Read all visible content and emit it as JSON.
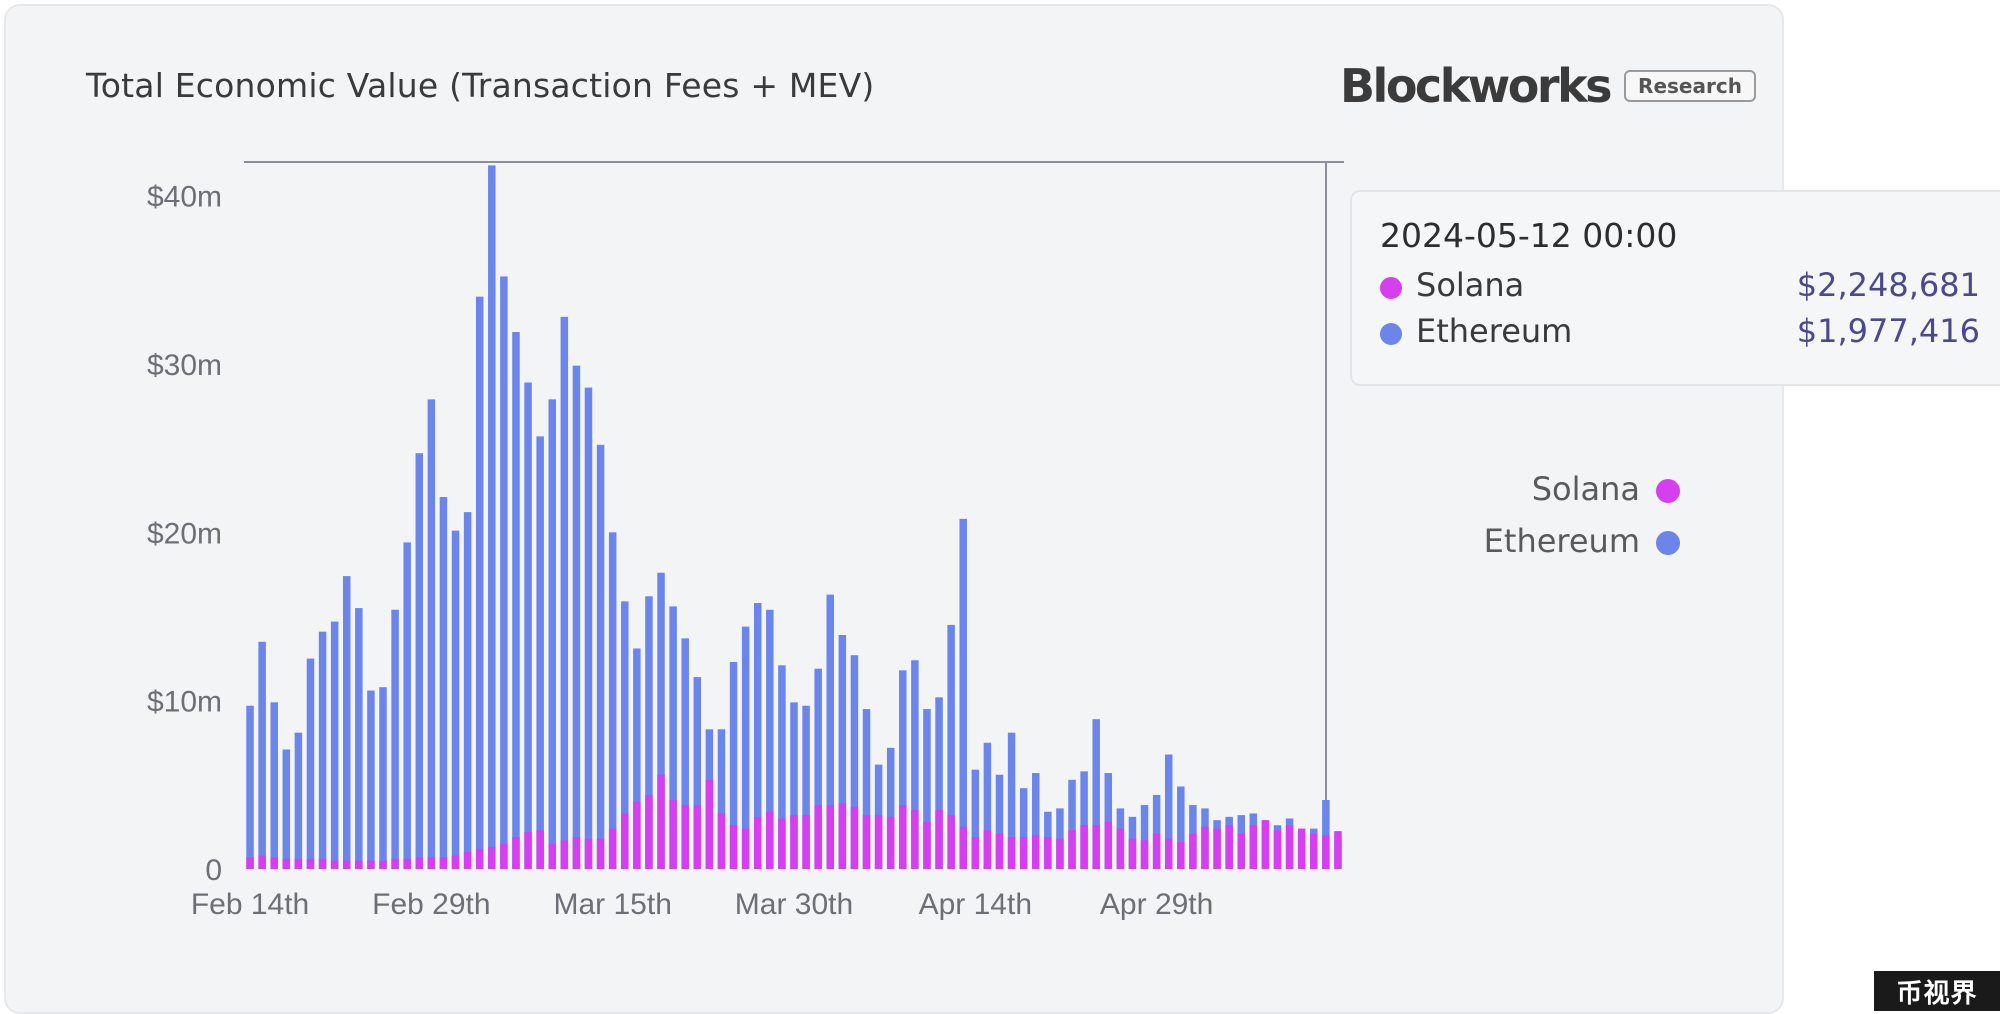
{
  "header": {
    "title": "Total Economic Value (Transaction Fees + MEV)",
    "brand": "Blockworks",
    "brand_badge": "Research"
  },
  "tooltip": {
    "date": "2024-05-12 00:00",
    "rows": [
      {
        "name": "Solana",
        "value": "$2,248,681",
        "color": "#d63ff0"
      },
      {
        "name": "Ethereum",
        "value": "$1,977,416",
        "color": "#6b85ea"
      }
    ]
  },
  "legend": [
    {
      "name": "Solana",
      "color": "#d63ff0"
    },
    {
      "name": "Ethereum",
      "color": "#6b85ea"
    }
  ],
  "watermark": "币视界",
  "chart_data": {
    "type": "bar",
    "y_ticks": [
      "0",
      "$10m",
      "$20m",
      "$30m",
      "$40m"
    ],
    "x_ticks": [
      "Feb 14th",
      "Feb 29th",
      "Mar 15th",
      "Mar 30th",
      "Apr 14th",
      "Apr 29th"
    ],
    "x_tick_indices": [
      0,
      15,
      30,
      45,
      60,
      75
    ],
    "ylim": [
      0,
      42
    ],
    "unit": "$m",
    "start_label": "Feb 14th",
    "colors": {
      "Solana": "#d63ff0",
      "Ethereum": "#6b85ea"
    },
    "series": [
      {
        "name": "Ethereum",
        "values": [
          9.7,
          13.5,
          9.9,
          7.1,
          8.1,
          12.5,
          14.1,
          14.7,
          17.4,
          15.5,
          10.6,
          10.8,
          15.4,
          19.4,
          24.7,
          27.9,
          22.1,
          20.1,
          21.2,
          34,
          41.8,
          35.2,
          31.9,
          28.9,
          25.7,
          27.9,
          32.8,
          29.9,
          28.6,
          25.2,
          20,
          15.9,
          13.1,
          16.2,
          17.6,
          15.6,
          13.7,
          11.4,
          8.3,
          8.3,
          12.3,
          14.4,
          15.8,
          15.4,
          12.1,
          9.9,
          9.7,
          11.9,
          16.3,
          13.9,
          12.7,
          9.5,
          6.2,
          7.2,
          11.8,
          12.4,
          9.5,
          10.2,
          14.5,
          20.8,
          5.9,
          7.5,
          5.6,
          8.1,
          4.8,
          5.7,
          3.4,
          3.6,
          5.3,
          5.8,
          8.9,
          5.7,
          3.6,
          3.1,
          3.8,
          4.4,
          6.8,
          4.9,
          3.8,
          3.6,
          2.9,
          3.1,
          3.2,
          3.3,
          2.9,
          2.6,
          3,
          2.2,
          2.4,
          4.1,
          1.98
        ]
      },
      {
        "name": "Solana",
        "values": [
          0.7,
          0.8,
          0.7,
          0.6,
          0.6,
          0.6,
          0.6,
          0.5,
          0.5,
          0.5,
          0.5,
          0.5,
          0.6,
          0.6,
          0.7,
          0.7,
          0.7,
          0.8,
          1,
          1.2,
          1.3,
          1.5,
          1.9,
          2.2,
          2.3,
          1.5,
          1.7,
          1.9,
          1.8,
          1.8,
          2.4,
          3.3,
          4,
          4.4,
          5.6,
          4.1,
          3.8,
          3.8,
          5.3,
          3.3,
          2.6,
          2.4,
          3.1,
          3.4,
          3,
          3.2,
          3.2,
          3.8,
          3.8,
          3.9,
          3.7,
          3.2,
          3.2,
          3.1,
          3.8,
          3.5,
          2.8,
          3.5,
          3.2,
          2.5,
          1.9,
          2.3,
          2.1,
          1.9,
          1.9,
          2,
          1.9,
          1.8,
          2.3,
          2.6,
          2.6,
          2.8,
          2.4,
          1.8,
          1.7,
          2.1,
          1.8,
          1.6,
          2.1,
          2.5,
          2.4,
          2.6,
          2.1,
          2.6,
          2.9,
          2.3,
          2.6,
          2.4,
          2.1,
          2,
          2.25
        ]
      }
    ]
  }
}
